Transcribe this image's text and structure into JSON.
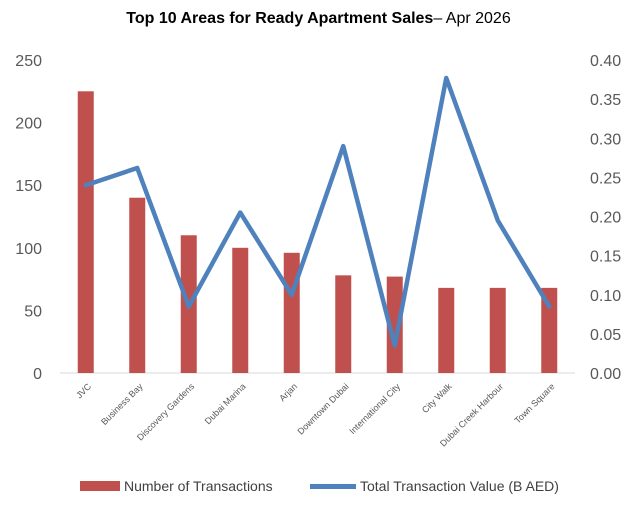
{
  "chart_data": {
    "type": "bar",
    "title": "Top 10 Areas for Ready Apartment Sales",
    "subtitle": "– Apr 2026",
    "categories": [
      "JVC",
      "Business Bay",
      "Discovery Gardens",
      "Dubai Marina",
      "Arjan",
      "Downtown Dubai",
      "International City",
      "City Walk",
      "Dubai Creek Harbour",
      "Town Square"
    ],
    "series": [
      {
        "name": "Number of Transactions",
        "type": "bar",
        "axis": "left",
        "color": "#c0504d",
        "values": [
          225,
          140,
          110,
          100,
          96,
          78,
          77,
          68,
          68,
          68
        ]
      },
      {
        "name": "Total Transaction Value  (B AED)",
        "type": "line",
        "axis": "right",
        "color": "#4f81bd",
        "values": [
          0.24,
          0.262,
          0.085,
          0.205,
          0.1,
          0.29,
          0.035,
          0.377,
          0.195,
          0.085
        ]
      }
    ],
    "y_left": {
      "min": 0,
      "max": 250,
      "ticks": [
        "0",
        "50",
        "100",
        "150",
        "200",
        "250"
      ]
    },
    "y_right": {
      "min": 0,
      "max": 0.4,
      "ticks": [
        "0.00",
        "0.05",
        "0.10",
        "0.15",
        "0.20",
        "0.25",
        "0.30",
        "0.35",
        "0.40"
      ]
    },
    "grid": false,
    "legend_position": "bottom"
  }
}
